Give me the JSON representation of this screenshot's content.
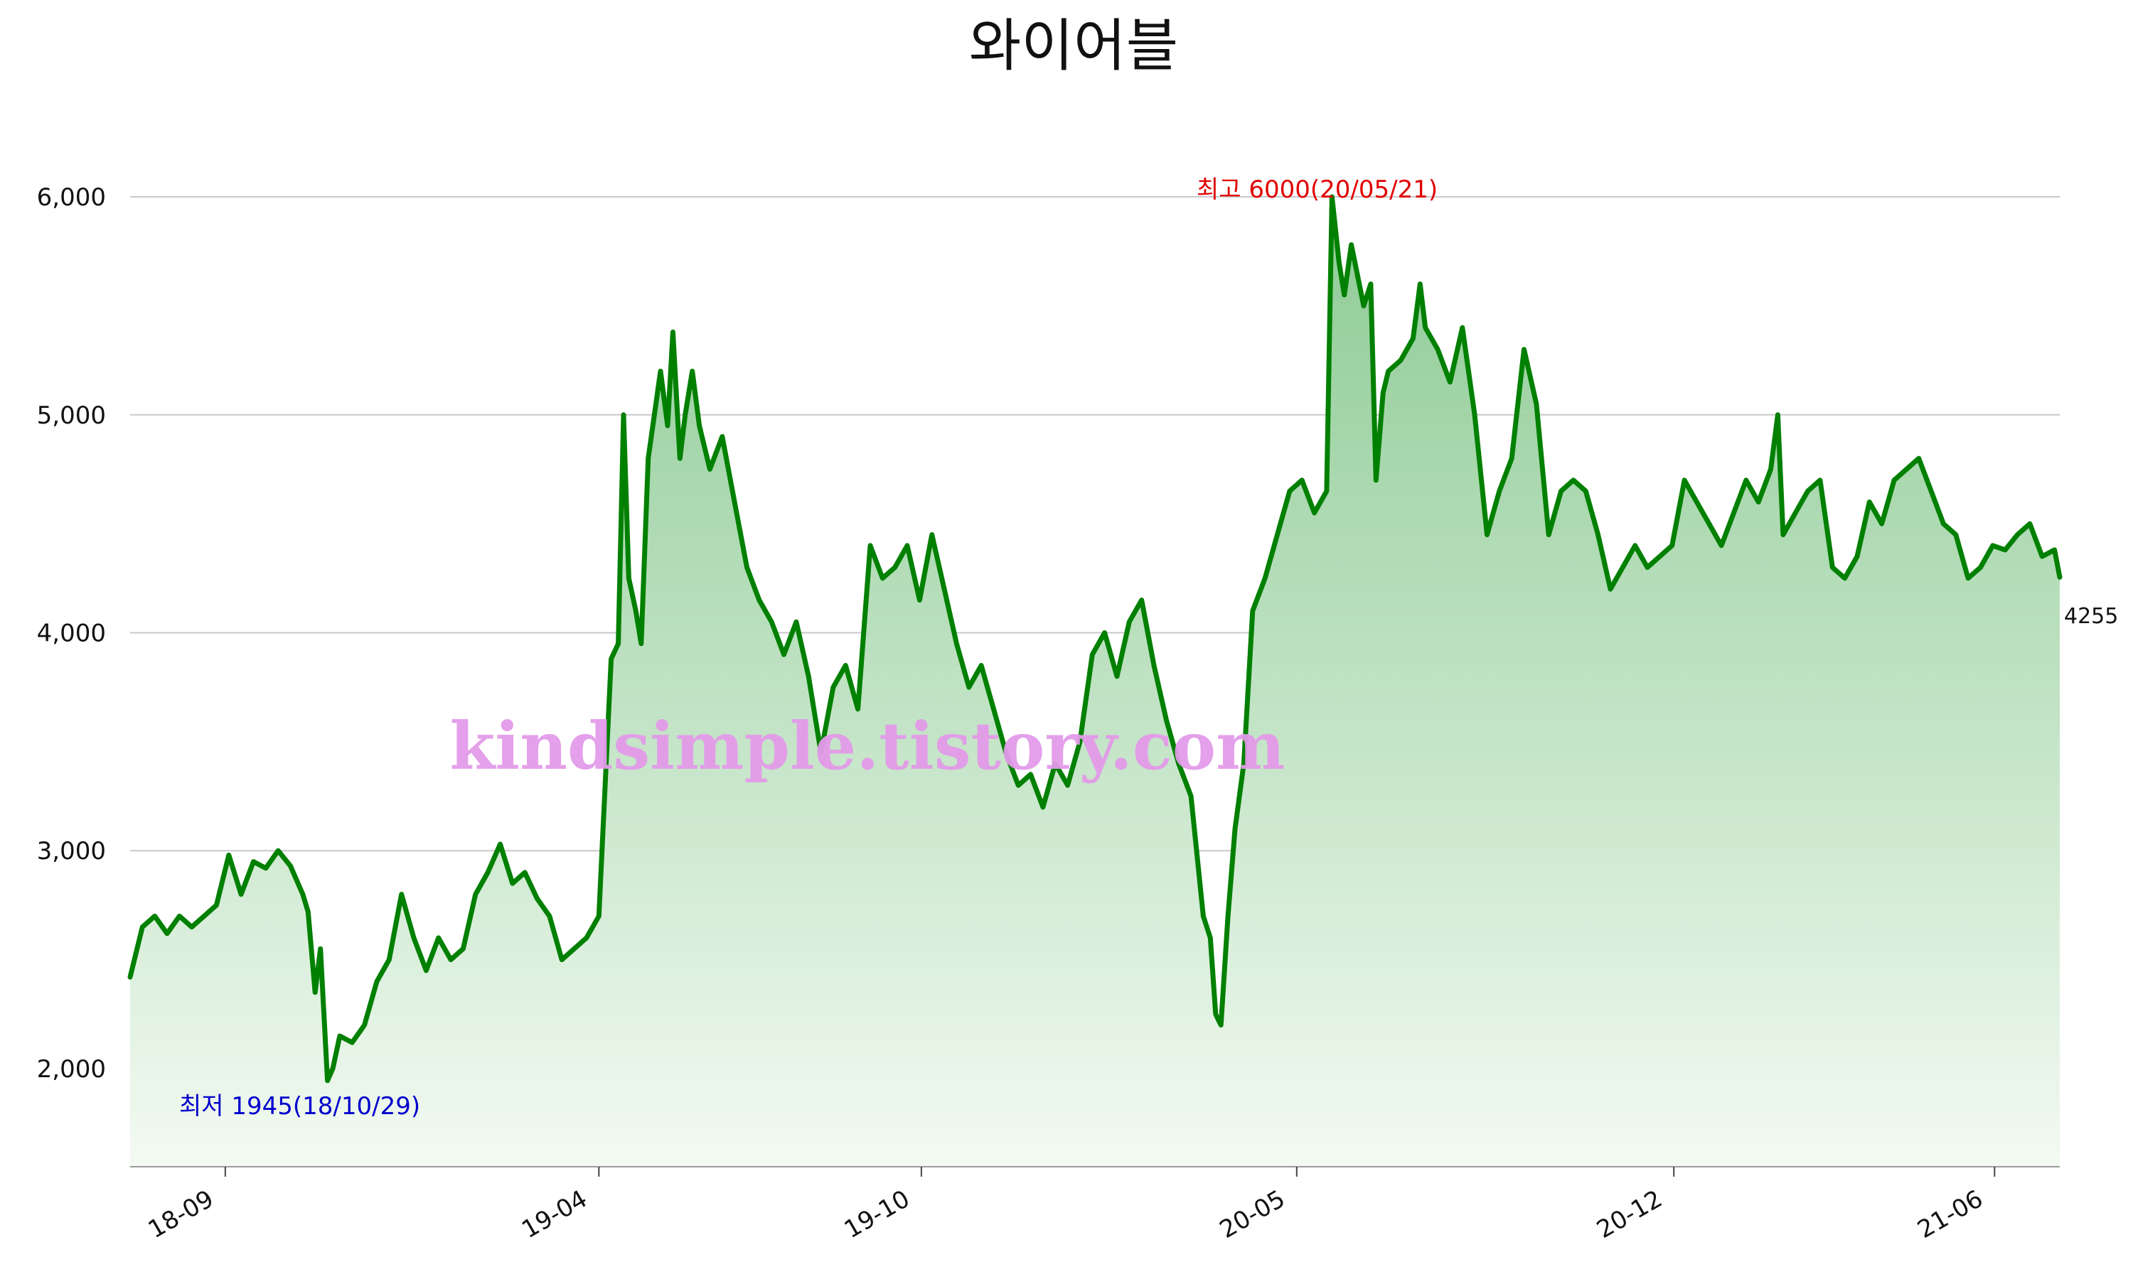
{
  "chart_data": {
    "type": "area",
    "title": "와이어블",
    "xlabel": "",
    "ylabel": "",
    "ylim": [
      1550,
      6300
    ],
    "x_range": [
      "2018-07-09",
      "2021-07-08"
    ],
    "y_ticks": [
      2000,
      3000,
      4000,
      5000,
      6000
    ],
    "y_tick_labels": [
      "2,000",
      "3,000",
      "4,000",
      "5,000",
      "6,000"
    ],
    "x_ticks": [
      "2018-09-01",
      "2019-04-01",
      "2019-10-01",
      "2020-05-01",
      "2020-12-01",
      "2021-06-01"
    ],
    "x_tick_labels": [
      "18-09",
      "19-04",
      "19-10",
      "20-05",
      "20-12",
      "21-06"
    ],
    "grid": true,
    "line_color": "#008000",
    "fill_color_top": "#87c88f",
    "fill_color_bottom": "#f3faf2",
    "annotations": {
      "high": {
        "text": "최고 6000(20/05/21)",
        "date": "2020-05-21",
        "value": 6000,
        "color": "#e00000"
      },
      "low": {
        "text": "최저 1945(18/10/29)",
        "date": "2018-10-29",
        "value": 1945,
        "color": "#0000cc"
      },
      "last": {
        "text": "4255",
        "date": "2021-07-08",
        "value": 4255,
        "color": "#111111"
      }
    },
    "watermark": "kindsimple.tistory.com",
    "series": [
      {
        "points": [
          [
            "2018-07-09",
            2420
          ],
          [
            "2018-07-16",
            2650
          ],
          [
            "2018-07-23",
            2700
          ],
          [
            "2018-07-30",
            2620
          ],
          [
            "2018-08-06",
            2700
          ],
          [
            "2018-08-13",
            2650
          ],
          [
            "2018-08-20",
            2700
          ],
          [
            "2018-08-27",
            2750
          ],
          [
            "2018-09-03",
            2980
          ],
          [
            "2018-09-10",
            2800
          ],
          [
            "2018-09-17",
            2950
          ],
          [
            "2018-09-24",
            2920
          ],
          [
            "2018-10-01",
            3000
          ],
          [
            "2018-10-08",
            2930
          ],
          [
            "2018-10-15",
            2800
          ],
          [
            "2018-10-18",
            2720
          ],
          [
            "2018-10-22",
            2350
          ],
          [
            "2018-10-25",
            2550
          ],
          [
            "2018-10-29",
            1945
          ],
          [
            "2018-11-01",
            2000
          ],
          [
            "2018-11-05",
            2150
          ],
          [
            "2018-11-12",
            2120
          ],
          [
            "2018-11-19",
            2200
          ],
          [
            "2018-11-26",
            2400
          ],
          [
            "2018-12-03",
            2500
          ],
          [
            "2018-12-10",
            2800
          ],
          [
            "2018-12-17",
            2600
          ],
          [
            "2018-12-24",
            2450
          ],
          [
            "2018-12-31",
            2600
          ],
          [
            "2019-01-07",
            2500
          ],
          [
            "2019-01-14",
            2550
          ],
          [
            "2019-01-21",
            2800
          ],
          [
            "2019-01-28",
            2900
          ],
          [
            "2019-02-04",
            3030
          ],
          [
            "2019-02-11",
            2850
          ],
          [
            "2019-02-18",
            2900
          ],
          [
            "2019-02-25",
            2780
          ],
          [
            "2019-03-04",
            2700
          ],
          [
            "2019-03-11",
            2500
          ],
          [
            "2019-03-18",
            2550
          ],
          [
            "2019-03-25",
            2600
          ],
          [
            "2019-04-01",
            2700
          ],
          [
            "2019-04-08",
            3880
          ],
          [
            "2019-04-12",
            3950
          ],
          [
            "2019-04-15",
            5000
          ],
          [
            "2019-04-18",
            4250
          ],
          [
            "2019-04-22",
            4100
          ],
          [
            "2019-04-25",
            3950
          ],
          [
            "2019-04-29",
            4800
          ],
          [
            "2019-05-06",
            5200
          ],
          [
            "2019-05-10",
            4950
          ],
          [
            "2019-05-13",
            5380
          ],
          [
            "2019-05-17",
            4800
          ],
          [
            "2019-05-20",
            5000
          ],
          [
            "2019-05-24",
            5200
          ],
          [
            "2019-05-28",
            4950
          ],
          [
            "2019-06-03",
            4750
          ],
          [
            "2019-06-10",
            4900
          ],
          [
            "2019-06-17",
            4600
          ],
          [
            "2019-06-24",
            4300
          ],
          [
            "2019-07-01",
            4150
          ],
          [
            "2019-07-08",
            4050
          ],
          [
            "2019-07-15",
            3900
          ],
          [
            "2019-07-22",
            4050
          ],
          [
            "2019-07-29",
            3800
          ],
          [
            "2019-08-05",
            3450
          ],
          [
            "2019-08-12",
            3750
          ],
          [
            "2019-08-19",
            3850
          ],
          [
            "2019-08-26",
            3650
          ],
          [
            "2019-09-02",
            4400
          ],
          [
            "2019-09-09",
            4250
          ],
          [
            "2019-09-16",
            4300
          ],
          [
            "2019-09-23",
            4400
          ],
          [
            "2019-09-30",
            4150
          ],
          [
            "2019-10-07",
            4450
          ],
          [
            "2019-10-14",
            4200
          ],
          [
            "2019-10-21",
            3950
          ],
          [
            "2019-10-28",
            3750
          ],
          [
            "2019-11-04",
            3850
          ],
          [
            "2019-11-11",
            3650
          ],
          [
            "2019-11-18",
            3450
          ],
          [
            "2019-11-25",
            3300
          ],
          [
            "2019-12-02",
            3350
          ],
          [
            "2019-12-09",
            3200
          ],
          [
            "2019-12-16",
            3400
          ],
          [
            "2019-12-23",
            3300
          ],
          [
            "2019-12-30",
            3500
          ],
          [
            "2020-01-06",
            3900
          ],
          [
            "2020-01-13",
            4000
          ],
          [
            "2020-01-20",
            3800
          ],
          [
            "2020-01-27",
            4050
          ],
          [
            "2020-02-03",
            4150
          ],
          [
            "2020-02-10",
            3850
          ],
          [
            "2020-02-17",
            3600
          ],
          [
            "2020-02-24",
            3400
          ],
          [
            "2020-03-02",
            3250
          ],
          [
            "2020-03-09",
            2700
          ],
          [
            "2020-03-13",
            2600
          ],
          [
            "2020-03-16",
            2250
          ],
          [
            "2020-03-19",
            2200
          ],
          [
            "2020-03-23",
            2700
          ],
          [
            "2020-03-27",
            3100
          ],
          [
            "2020-04-01",
            3400
          ],
          [
            "2020-04-06",
            4100
          ],
          [
            "2020-04-13",
            4250
          ],
          [
            "2020-04-20",
            4450
          ],
          [
            "2020-04-27",
            4650
          ],
          [
            "2020-05-04",
            4700
          ],
          [
            "2020-05-11",
            4550
          ],
          [
            "2020-05-18",
            4650
          ],
          [
            "2020-05-21",
            6000
          ],
          [
            "2020-05-25",
            5700
          ],
          [
            "2020-05-28",
            5550
          ],
          [
            "2020-06-01",
            5780
          ],
          [
            "2020-06-08",
            5500
          ],
          [
            "2020-06-12",
            5600
          ],
          [
            "2020-06-15",
            4700
          ],
          [
            "2020-06-19",
            5100
          ],
          [
            "2020-06-22",
            5200
          ],
          [
            "2020-06-29",
            5250
          ],
          [
            "2020-07-06",
            5350
          ],
          [
            "2020-07-10",
            5600
          ],
          [
            "2020-07-13",
            5400
          ],
          [
            "2020-07-20",
            5300
          ],
          [
            "2020-07-27",
            5150
          ],
          [
            "2020-08-03",
            5400
          ],
          [
            "2020-08-10",
            5000
          ],
          [
            "2020-08-17",
            4450
          ],
          [
            "2020-08-24",
            4650
          ],
          [
            "2020-08-31",
            4800
          ],
          [
            "2020-09-07",
            5300
          ],
          [
            "2020-09-14",
            5050
          ],
          [
            "2020-09-21",
            4450
          ],
          [
            "2020-09-28",
            4650
          ],
          [
            "2020-10-05",
            4700
          ],
          [
            "2020-10-12",
            4650
          ],
          [
            "2020-10-19",
            4450
          ],
          [
            "2020-10-26",
            4200
          ],
          [
            "2020-11-02",
            4300
          ],
          [
            "2020-11-09",
            4400
          ],
          [
            "2020-11-16",
            4300
          ],
          [
            "2020-11-23",
            4350
          ],
          [
            "2020-11-30",
            4400
          ],
          [
            "2020-12-07",
            4700
          ],
          [
            "2020-12-14",
            4600
          ],
          [
            "2020-12-21",
            4500
          ],
          [
            "2020-12-28",
            4400
          ],
          [
            "2021-01-04",
            4550
          ],
          [
            "2021-01-11",
            4700
          ],
          [
            "2021-01-18",
            4600
          ],
          [
            "2021-01-25",
            4750
          ],
          [
            "2021-01-29",
            5000
          ],
          [
            "2021-02-01",
            4450
          ],
          [
            "2021-02-08",
            4550
          ],
          [
            "2021-02-15",
            4650
          ],
          [
            "2021-02-22",
            4700
          ],
          [
            "2021-03-01",
            4300
          ],
          [
            "2021-03-08",
            4250
          ],
          [
            "2021-03-15",
            4350
          ],
          [
            "2021-03-22",
            4600
          ],
          [
            "2021-03-29",
            4500
          ],
          [
            "2021-04-05",
            4700
          ],
          [
            "2021-04-12",
            4750
          ],
          [
            "2021-04-19",
            4800
          ],
          [
            "2021-04-26",
            4650
          ],
          [
            "2021-05-03",
            4500
          ],
          [
            "2021-05-10",
            4450
          ],
          [
            "2021-05-17",
            4250
          ],
          [
            "2021-05-24",
            4300
          ],
          [
            "2021-05-31",
            4400
          ],
          [
            "2021-06-07",
            4380
          ],
          [
            "2021-06-14",
            4450
          ],
          [
            "2021-06-21",
            4500
          ],
          [
            "2021-06-28",
            4350
          ],
          [
            "2021-07-05",
            4380
          ],
          [
            "2021-07-08",
            4255
          ]
        ]
      }
    ]
  }
}
